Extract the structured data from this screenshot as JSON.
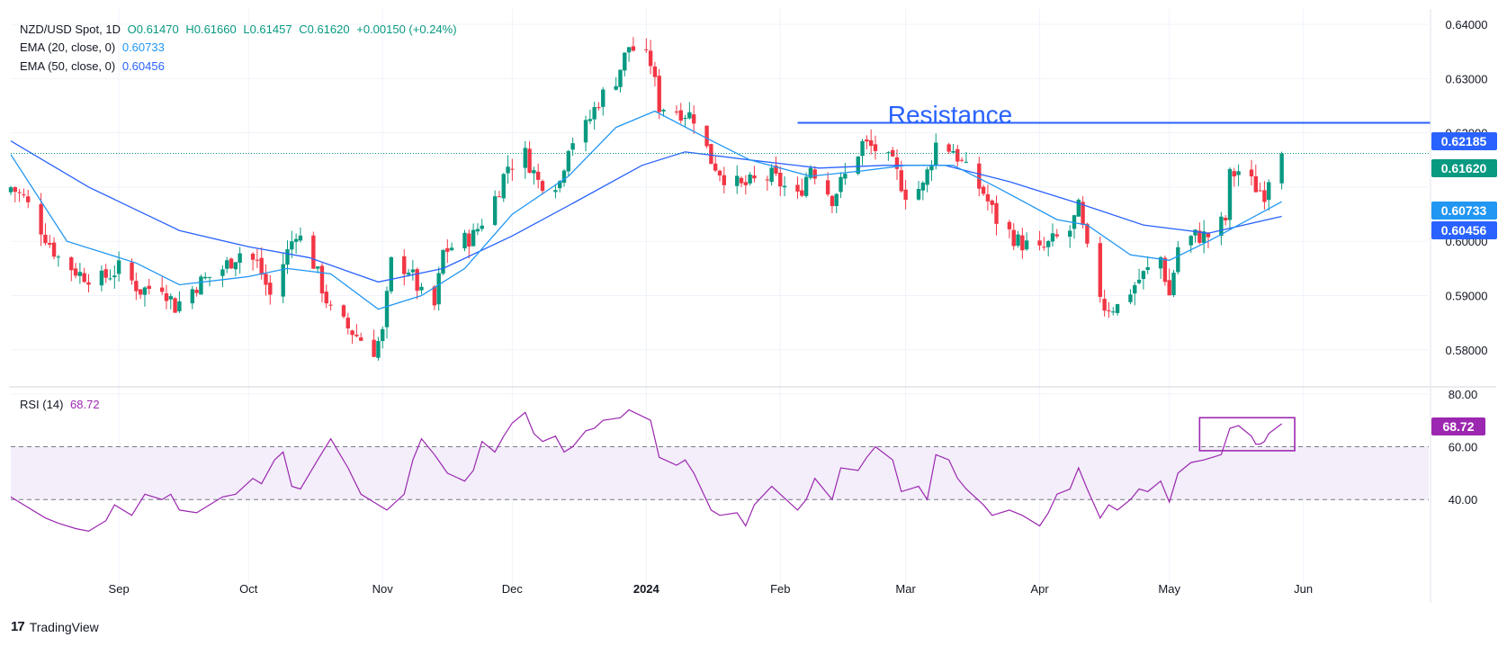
{
  "header": {
    "symbol": "NZD/USD Spot, 1D",
    "open": "O0.61470",
    "high": "H0.61660",
    "low": "L0.61457",
    "close": "C0.61620",
    "change": "+0.00150 (+0.24%)"
  },
  "indicators": {
    "ema20_label": "EMA (20, close, 0)",
    "ema20_value": "0.60733",
    "ema50_label": "EMA (50, close, 0)",
    "ema50_value": "0.60456",
    "rsi_label": "RSI (14)",
    "rsi_value": "68.72"
  },
  "annotation": {
    "resistance": "Resistance"
  },
  "price_badges": {
    "resistance": "0.62185",
    "last": "0.61620",
    "ema20": "0.60733",
    "ema50": "0.60456",
    "rsi": "68.72"
  },
  "footer": {
    "brand": "TradingView"
  },
  "colors": {
    "up": "#089981",
    "down": "#f23645",
    "ema20": "#2196f3",
    "ema50": "#2962ff",
    "resistance": "#2962ff",
    "rsi": "#9c27b0",
    "rsi_band": "#f3eefa"
  },
  "chart_data": [
    {
      "type": "candlestick",
      "title": "NZD/USD Spot, 1D",
      "ylim": [
        0.5735,
        0.6425
      ],
      "y_ticks": [
        0.58,
        0.59,
        0.6,
        0.61,
        0.62,
        0.63,
        0.64
      ],
      "y_tick_labels": [
        "0.58000",
        "0.59000",
        "0.60000",
        "",
        "0.62000",
        "0.63000",
        "0.64000"
      ],
      "x_tick_labels": [
        "Sep",
        "Oct",
        "Nov",
        "Dec",
        "2024",
        "Feb",
        "Mar",
        "Apr",
        "May",
        "Jun"
      ],
      "x_start": "2023-08-07",
      "x_end": "2024-06-30",
      "resistance_level": 0.62185,
      "resistance_from": "2024-02-05",
      "last_price": 0.6162,
      "waypoints": [
        [
          "2023-08-07",
          0.61
        ],
        [
          "2023-08-10",
          0.608
        ],
        [
          "2023-08-15",
          0.601
        ],
        [
          "2023-08-18",
          0.597
        ],
        [
          "2023-08-23",
          0.594
        ],
        [
          "2023-08-28",
          0.593
        ],
        [
          "2023-09-01",
          0.595
        ],
        [
          "2023-09-06",
          0.591
        ],
        [
          "2023-09-11",
          0.592
        ],
        [
          "2023-09-14",
          0.588
        ],
        [
          "2023-09-19",
          0.592
        ],
        [
          "2023-09-25",
          0.595
        ],
        [
          "2023-09-29",
          0.598
        ],
        [
          "2023-10-03",
          0.596
        ],
        [
          "2023-10-06",
          0.59
        ],
        [
          "2023-10-10",
          0.598
        ],
        [
          "2023-10-12",
          0.602
        ],
        [
          "2023-10-16",
          0.596
        ],
        [
          "2023-10-20",
          0.587
        ],
        [
          "2023-10-24",
          0.584
        ],
        [
          "2023-10-27",
          0.582
        ],
        [
          "2023-10-30",
          0.58
        ],
        [
          "2023-11-01",
          0.583
        ],
        [
          "2023-11-03",
          0.596
        ],
        [
          "2023-11-07",
          0.595
        ],
        [
          "2023-11-10",
          0.59
        ],
        [
          "2023-11-13",
          0.588
        ],
        [
          "2023-11-15",
          0.598
        ],
        [
          "2023-11-17",
          0.599
        ],
        [
          "2023-11-22",
          0.601
        ],
        [
          "2023-11-27",
          0.608
        ],
        [
          "2023-11-30",
          0.614
        ],
        [
          "2023-12-04",
          0.616
        ],
        [
          "2023-12-07",
          0.611
        ],
        [
          "2023-12-12",
          0.611
        ],
        [
          "2023-12-14",
          0.618
        ],
        [
          "2023-12-18",
          0.621
        ],
        [
          "2023-12-21",
          0.626
        ],
        [
          "2023-12-25",
          0.63
        ],
        [
          "2023-12-28",
          0.636
        ],
        [
          "2024-01-02",
          0.633
        ],
        [
          "2024-01-04",
          0.625
        ],
        [
          "2024-01-09",
          0.624
        ],
        [
          "2024-01-12",
          0.623
        ],
        [
          "2024-01-16",
          0.615
        ],
        [
          "2024-01-19",
          0.612
        ],
        [
          "2024-01-23",
          0.61
        ],
        [
          "2024-01-26",
          0.611
        ],
        [
          "2024-01-30",
          0.612
        ],
        [
          "2024-02-02",
          0.61
        ],
        [
          "2024-02-05",
          0.608
        ],
        [
          "2024-02-08",
          0.614
        ],
        [
          "2024-02-13",
          0.608
        ],
        [
          "2024-02-16",
          0.612
        ],
        [
          "2024-02-20",
          0.618
        ],
        [
          "2024-02-23",
          0.617
        ],
        [
          "2024-02-27",
          0.614
        ],
        [
          "2024-03-01",
          0.609
        ],
        [
          "2024-03-05",
          0.61
        ],
        [
          "2024-03-08",
          0.618
        ],
        [
          "2024-03-12",
          0.617
        ],
        [
          "2024-03-15",
          0.613
        ],
        [
          "2024-03-19",
          0.609
        ],
        [
          "2024-03-22",
          0.604
        ],
        [
          "2024-03-27",
          0.6
        ],
        [
          "2024-04-01",
          0.598
        ],
        [
          "2024-04-04",
          0.6
        ],
        [
          "2024-04-08",
          0.602
        ],
        [
          "2024-04-10",
          0.606
        ],
        [
          "2024-04-12",
          0.598
        ],
        [
          "2024-04-16",
          0.588
        ],
        [
          "2024-04-19",
          0.588
        ],
        [
          "2024-04-24",
          0.593
        ],
        [
          "2024-04-29",
          0.597
        ],
        [
          "2024-05-01",
          0.59
        ],
        [
          "2024-05-03",
          0.599
        ],
        [
          "2024-05-07",
          0.601
        ],
        [
          "2024-05-10",
          0.601
        ],
        [
          "2024-05-14",
          0.604
        ],
        [
          "2024-05-15",
          0.612
        ],
        [
          "2024-05-17",
          0.613
        ],
        [
          "2024-05-21",
          0.61
        ],
        [
          "2024-05-23",
          0.609
        ],
        [
          "2024-05-24",
          0.612
        ],
        [
          "2024-05-27",
          0.6162
        ]
      ],
      "ema20": [
        [
          "2023-08-07",
          0.616
        ],
        [
          "2023-08-20",
          0.6
        ],
        [
          "2023-09-05",
          0.596
        ],
        [
          "2023-09-15",
          0.592
        ],
        [
          "2023-10-01",
          0.5935
        ],
        [
          "2023-10-10",
          0.595
        ],
        [
          "2023-10-20",
          0.594
        ],
        [
          "2023-10-31",
          0.5875
        ],
        [
          "2023-11-10",
          0.59
        ],
        [
          "2023-11-20",
          0.595
        ],
        [
          "2023-12-01",
          0.605
        ],
        [
          "2023-12-14",
          0.612
        ],
        [
          "2023-12-25",
          0.621
        ],
        [
          "2024-01-03",
          0.624
        ],
        [
          "2024-01-15",
          0.619
        ],
        [
          "2024-01-25",
          0.615
        ],
        [
          "2024-02-08",
          0.612
        ],
        [
          "2024-02-20",
          0.613
        ],
        [
          "2024-03-01",
          0.614
        ],
        [
          "2024-03-12",
          0.614
        ],
        [
          "2024-03-22",
          0.61
        ],
        [
          "2024-04-05",
          0.604
        ],
        [
          "2024-04-12",
          0.603
        ],
        [
          "2024-04-22",
          0.5975
        ],
        [
          "2024-05-01",
          0.5965
        ],
        [
          "2024-05-10",
          0.6
        ],
        [
          "2024-05-17",
          0.603
        ],
        [
          "2024-05-27",
          0.6073
        ]
      ],
      "ema50": [
        [
          "2023-08-07",
          0.6185
        ],
        [
          "2023-08-25",
          0.61
        ],
        [
          "2023-09-15",
          0.602
        ],
        [
          "2023-10-01",
          0.599
        ],
        [
          "2023-10-15",
          0.597
        ],
        [
          "2023-10-31",
          0.5925
        ],
        [
          "2023-11-15",
          0.595
        ],
        [
          "2023-12-01",
          0.601
        ],
        [
          "2023-12-15",
          0.607
        ],
        [
          "2023-12-31",
          0.614
        ],
        [
          "2024-01-10",
          0.6165
        ],
        [
          "2024-01-25",
          0.615
        ],
        [
          "2024-02-10",
          0.6135
        ],
        [
          "2024-02-25",
          0.614
        ],
        [
          "2024-03-10",
          0.614
        ],
        [
          "2024-03-25",
          0.611
        ],
        [
          "2024-04-10",
          0.607
        ],
        [
          "2024-04-25",
          0.603
        ],
        [
          "2024-05-10",
          0.6015
        ],
        [
          "2024-05-27",
          0.6046
        ]
      ]
    },
    {
      "type": "line",
      "title": "RSI (14)",
      "ylim": [
        22,
        82
      ],
      "y_ticks": [
        40,
        60,
        80
      ],
      "y_tick_labels": [
        "40.00",
        "60.00",
        "80.00"
      ],
      "band": [
        40,
        60
      ],
      "last_value": 68.72,
      "highlight_box": {
        "from": "2024-05-08",
        "to": "2024-05-30",
        "ymin": 58.5,
        "ymax": 71
      },
      "points": [
        [
          "2023-08-07",
          41
        ],
        [
          "2023-08-10",
          38
        ],
        [
          "2023-08-15",
          33
        ],
        [
          "2023-08-18",
          31
        ],
        [
          "2023-08-22",
          29
        ],
        [
          "2023-08-25",
          28
        ],
        [
          "2023-08-29",
          32
        ],
        [
          "2023-08-31",
          38
        ],
        [
          "2023-09-04",
          34
        ],
        [
          "2023-09-07",
          42
        ],
        [
          "2023-09-11",
          40
        ],
        [
          "2023-09-13",
          42
        ],
        [
          "2023-09-15",
          36
        ],
        [
          "2023-09-19",
          35
        ],
        [
          "2023-09-21",
          37
        ],
        [
          "2023-09-25",
          41
        ],
        [
          "2023-09-28",
          42
        ],
        [
          "2023-10-02",
          48
        ],
        [
          "2023-10-04",
          46
        ],
        [
          "2023-10-07",
          55
        ],
        [
          "2023-10-09",
          58
        ],
        [
          "2023-10-11",
          45
        ],
        [
          "2023-10-13",
          44
        ],
        [
          "2023-10-17",
          55
        ],
        [
          "2023-10-20",
          63
        ],
        [
          "2023-10-24",
          52
        ],
        [
          "2023-10-27",
          42
        ],
        [
          "2023-10-31",
          38
        ],
        [
          "2023-11-02",
          36
        ],
        [
          "2023-11-06",
          42
        ],
        [
          "2023-11-08",
          55
        ],
        [
          "2023-11-10",
          63
        ],
        [
          "2023-11-13",
          57
        ],
        [
          "2023-11-16",
          50
        ],
        [
          "2023-11-20",
          47
        ],
        [
          "2023-11-22",
          51
        ],
        [
          "2023-11-24",
          62
        ],
        [
          "2023-11-27",
          58
        ],
        [
          "2023-11-29",
          64
        ],
        [
          "2023-12-01",
          69
        ],
        [
          "2023-12-04",
          73
        ],
        [
          "2023-12-06",
          65
        ],
        [
          "2023-12-08",
          62
        ],
        [
          "2023-12-11",
          64
        ],
        [
          "2023-12-13",
          58
        ],
        [
          "2023-12-15",
          60
        ],
        [
          "2023-12-18",
          66
        ],
        [
          "2023-12-20",
          67
        ],
        [
          "2023-12-22",
          70
        ],
        [
          "2023-12-26",
          71
        ],
        [
          "2023-12-28",
          74
        ],
        [
          "2024-01-02",
          70
        ],
        [
          "2024-01-04",
          56
        ],
        [
          "2024-01-08",
          53
        ],
        [
          "2024-01-10",
          55
        ],
        [
          "2024-01-12",
          50
        ],
        [
          "2024-01-16",
          36
        ],
        [
          "2024-01-18",
          34
        ],
        [
          "2024-01-22",
          35
        ],
        [
          "2024-01-24",
          30
        ],
        [
          "2024-01-26",
          38
        ],
        [
          "2024-01-30",
          45
        ],
        [
          "2024-02-01",
          42
        ],
        [
          "2024-02-05",
          36
        ],
        [
          "2024-02-07",
          40
        ],
        [
          "2024-02-09",
          48
        ],
        [
          "2024-02-13",
          40
        ],
        [
          "2024-02-15",
          52
        ],
        [
          "2024-02-19",
          51
        ],
        [
          "2024-02-21",
          56
        ],
        [
          "2024-02-23",
          60
        ],
        [
          "2024-02-27",
          55
        ],
        [
          "2024-02-29",
          43
        ],
        [
          "2024-03-04",
          45
        ],
        [
          "2024-03-06",
          40
        ],
        [
          "2024-03-08",
          57
        ],
        [
          "2024-03-11",
          55
        ],
        [
          "2024-03-13",
          48
        ],
        [
          "2024-03-15",
          44
        ],
        [
          "2024-03-19",
          38
        ],
        [
          "2024-03-21",
          34
        ],
        [
          "2024-03-25",
          36
        ],
        [
          "2024-03-28",
          34
        ],
        [
          "2024-04-01",
          30
        ],
        [
          "2024-04-03",
          35
        ],
        [
          "2024-04-05",
          42
        ],
        [
          "2024-04-08",
          44
        ],
        [
          "2024-04-10",
          52
        ],
        [
          "2024-04-12",
          44
        ],
        [
          "2024-04-15",
          33
        ],
        [
          "2024-04-17",
          38
        ],
        [
          "2024-04-19",
          36
        ],
        [
          "2024-04-22",
          40
        ],
        [
          "2024-04-24",
          44
        ],
        [
          "2024-04-26",
          43
        ],
        [
          "2024-04-29",
          47
        ],
        [
          "2024-05-01",
          39
        ],
        [
          "2024-05-03",
          50
        ],
        [
          "2024-05-06",
          54
        ],
        [
          "2024-05-09",
          55
        ],
        [
          "2024-05-13",
          57
        ],
        [
          "2024-05-14",
          62
        ],
        [
          "2024-05-15",
          67
        ],
        [
          "2024-05-17",
          68
        ],
        [
          "2024-05-20",
          64
        ],
        [
          "2024-05-21",
          61
        ],
        [
          "2024-05-22",
          61
        ],
        [
          "2024-05-23",
          62
        ],
        [
          "2024-05-24",
          65
        ],
        [
          "2024-05-27",
          68.72
        ]
      ]
    }
  ]
}
